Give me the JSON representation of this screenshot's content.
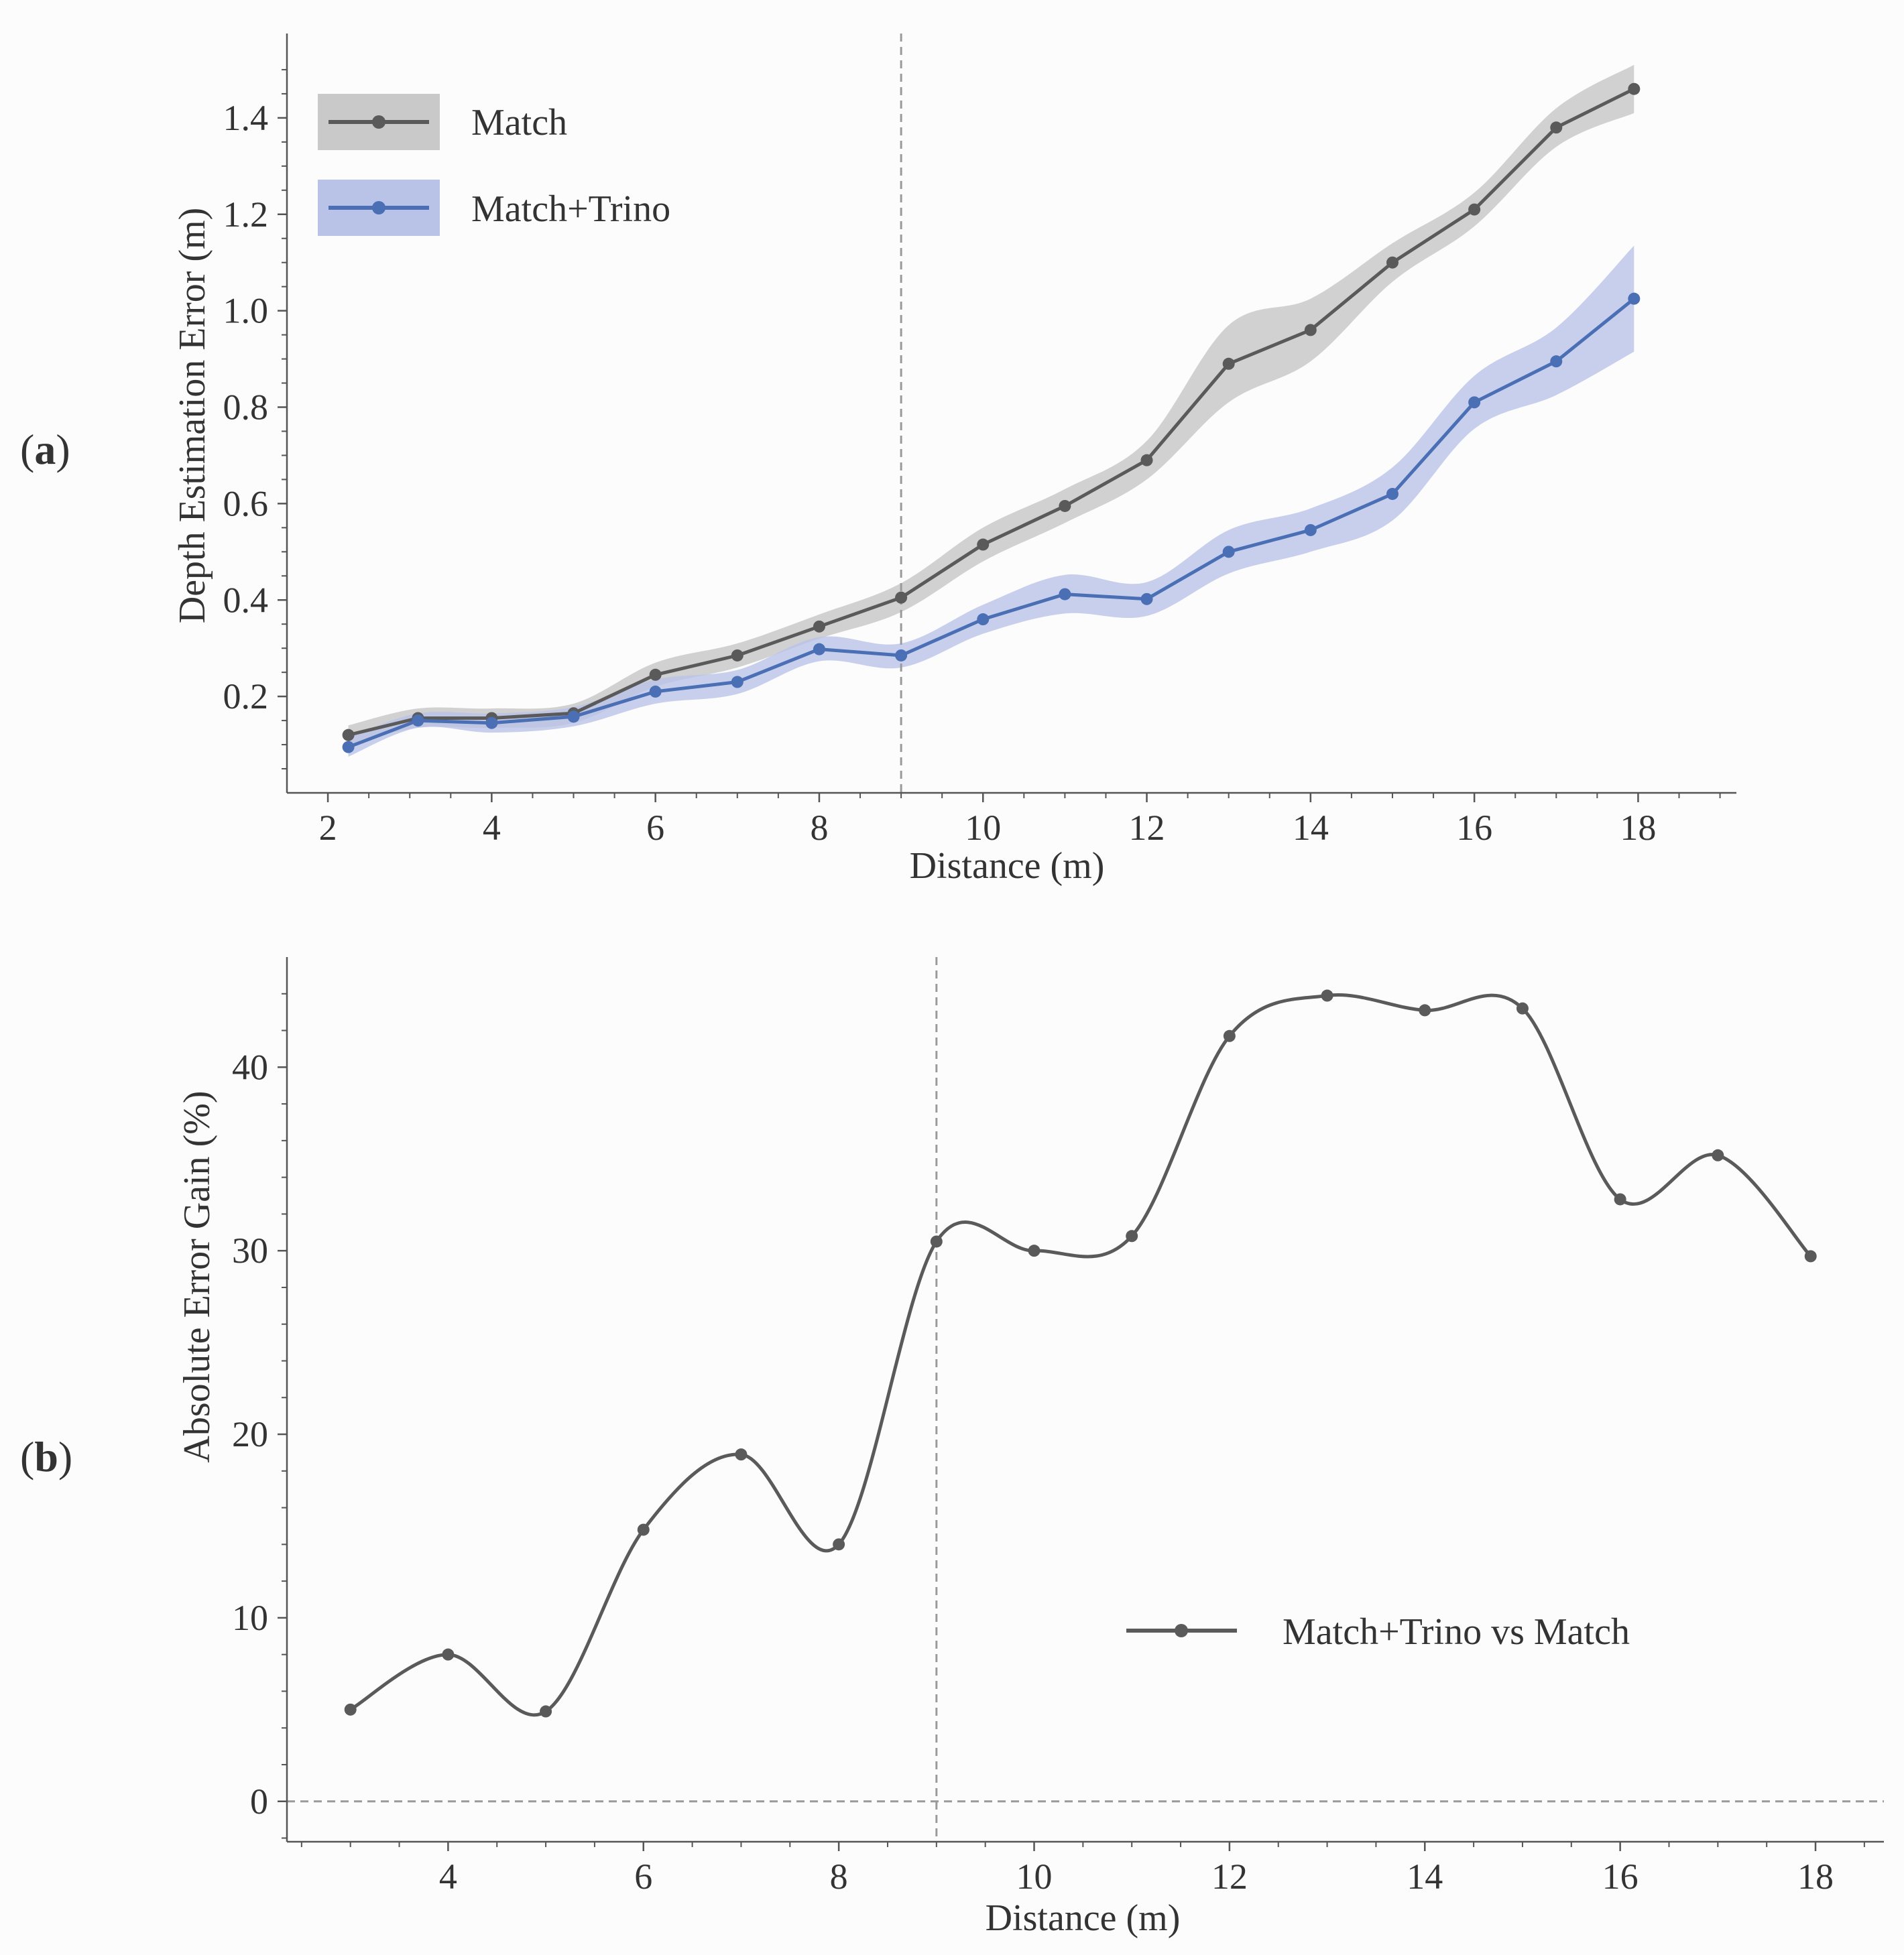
{
  "figure": {
    "panel_a": {
      "open": "(",
      "letter": "a",
      "close": ")"
    },
    "panel_b": {
      "open": "(",
      "letter": "b",
      "close": ")"
    }
  },
  "colors": {
    "match": "#5a5a5a",
    "match_band": "#c9c9c9",
    "trino": "#4a6fb5",
    "trino_band": "#b9c3e8",
    "axis": "#555555",
    "dashed": "#9a9a9a"
  },
  "chart_data": [
    {
      "id": "a",
      "type": "line",
      "title": "",
      "xlabel": "Distance (m)",
      "ylabel": "Depth Estimation Error (m)",
      "xlim": [
        1.5,
        19.2
      ],
      "ylim": [
        0.0,
        1.575
      ],
      "xticks": [
        2,
        4,
        6,
        8,
        10,
        12,
        14,
        16,
        18
      ],
      "yticks": [
        0.2,
        0.4,
        0.6,
        0.8,
        1.0,
        1.2,
        1.4
      ],
      "ytick_labels": [
        "0.2",
        "0.4",
        "0.6",
        "0.8",
        "1.0",
        "1.2",
        "1.4"
      ],
      "vline_x": 9,
      "legend": "top-left",
      "series": [
        {
          "name": "Match",
          "color": "#5a5a5a",
          "band_color": "#c9c9c9",
          "x": [
            2.25,
            3.1,
            4.0,
            5.0,
            6.0,
            7.0,
            8.0,
            9.0,
            10.0,
            11.0,
            12.0,
            13.0,
            14.0,
            15.0,
            16.0,
            17.0,
            17.95
          ],
          "y": [
            0.12,
            0.155,
            0.155,
            0.165,
            0.245,
            0.285,
            0.345,
            0.405,
            0.515,
            0.595,
            0.69,
            0.89,
            0.96,
            1.1,
            1.21,
            1.38,
            1.46
          ],
          "spread": [
            0.02,
            0.02,
            0.02,
            0.02,
            0.025,
            0.025,
            0.025,
            0.03,
            0.035,
            0.035,
            0.04,
            0.08,
            0.065,
            0.04,
            0.035,
            0.04,
            0.05
          ]
        },
        {
          "name": "Match+Trino",
          "color": "#4a6fb5",
          "band_color": "#b9c3e8",
          "x": [
            2.25,
            3.1,
            4.0,
            5.0,
            6.0,
            7.0,
            8.0,
            9.0,
            10.0,
            11.0,
            12.0,
            13.0,
            14.0,
            15.0,
            16.0,
            17.0,
            17.95
          ],
          "y": [
            0.095,
            0.15,
            0.145,
            0.158,
            0.21,
            0.23,
            0.298,
            0.285,
            0.36,
            0.412,
            0.402,
            0.5,
            0.545,
            0.62,
            0.81,
            0.895,
            1.025
          ],
          "spread": [
            0.02,
            0.015,
            0.02,
            0.02,
            0.025,
            0.025,
            0.025,
            0.025,
            0.03,
            0.04,
            0.035,
            0.045,
            0.045,
            0.055,
            0.055,
            0.07,
            0.11
          ]
        }
      ]
    },
    {
      "id": "b",
      "type": "line",
      "title": "",
      "xlabel": "Distance (m)",
      "ylabel": "Absolute Error Gain (%)",
      "xlim": [
        2.35,
        18.7
      ],
      "ylim": [
        -2.2,
        46.0
      ],
      "xticks": [
        4,
        6,
        8,
        10,
        12,
        14,
        16,
        18
      ],
      "yticks": [
        0,
        10,
        20,
        30,
        40
      ],
      "ytick_labels": [
        "0",
        "10",
        "20",
        "30",
        "40"
      ],
      "vline_x": 9,
      "hline_y": 0,
      "legend": "lower-right",
      "series": [
        {
          "name": "Match+Trino vs Match",
          "color": "#5a5a5a",
          "x": [
            3.0,
            4.0,
            5.0,
            6.0,
            7.0,
            8.0,
            9.0,
            10.0,
            11.0,
            12.0,
            13.0,
            14.0,
            15.0,
            16.0,
            17.0,
            17.95
          ],
          "y": [
            5.0,
            8.0,
            4.9,
            14.8,
            18.9,
            14.0,
            30.5,
            30.0,
            30.8,
            41.7,
            43.9,
            43.1,
            43.2,
            32.8,
            35.2,
            29.7
          ]
        }
      ]
    }
  ]
}
